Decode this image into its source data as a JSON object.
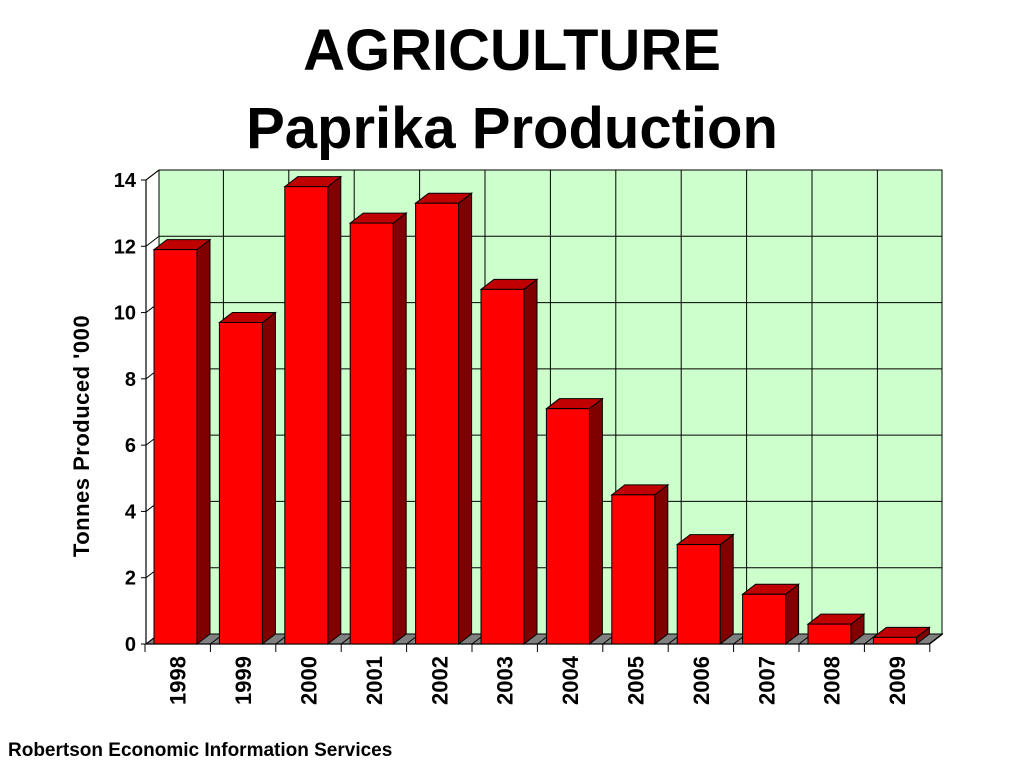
{
  "title_line1": "AGRICULTURE",
  "title_line2": "Paprika Production",
  "footer": "Robertson Economic Information Services",
  "chart_data": {
    "type": "bar",
    "categories": [
      "1998",
      "1999",
      "2000",
      "2001",
      "2002",
      "2003",
      "2004",
      "2005",
      "2006",
      "2007",
      "2008",
      "2009"
    ],
    "values": [
      11.9,
      9.7,
      13.8,
      12.7,
      13.3,
      10.7,
      7.1,
      4.5,
      3.0,
      1.5,
      0.6,
      0.2
    ],
    "ylabel": "Tonnes Produced '000",
    "xlabel": "",
    "ylim": [
      0,
      14
    ],
    "yticks": [
      0,
      2,
      4,
      6,
      8,
      10,
      12,
      14
    ],
    "grid": true,
    "three_d": true,
    "colors": {
      "bar_front": "#ff0000",
      "bar_side": "#800000",
      "bar_top": "#c00000",
      "plot_background": "#ccffcc",
      "floor": "#808080"
    }
  }
}
